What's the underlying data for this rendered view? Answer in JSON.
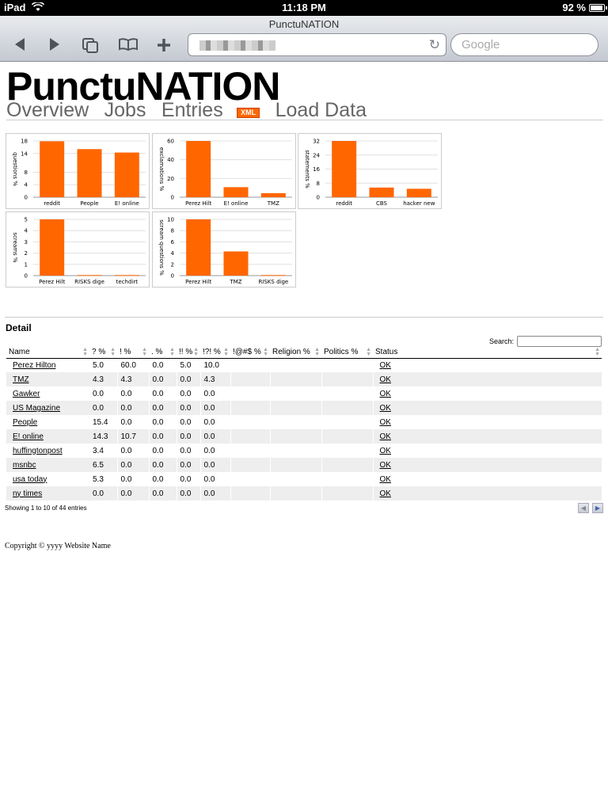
{
  "statusbar": {
    "carrier": "iPad",
    "time": "11:18 PM",
    "battery": "92 %",
    "battery_level": 0.92
  },
  "browser": {
    "page_title": "PunctuNATION",
    "search_placeholder": "Google"
  },
  "site": {
    "title": "PunctuNATION",
    "nav": [
      "Overview",
      "Jobs",
      "Entries"
    ],
    "xml_badge": "XML",
    "nav_load": "Load Data"
  },
  "colors": {
    "accent": "#ff6600",
    "grid": "#e0e0e0",
    "row_alt": "#eeeeee"
  },
  "chart_data": [
    {
      "type": "bar",
      "ylabel": "questions %",
      "categories": [
        "reddit",
        "People",
        "E! online"
      ],
      "values": [
        17.9,
        15.4,
        14.3
      ],
      "ylim": [
        0,
        18
      ],
      "yticks": [
        0,
        4,
        8,
        14,
        18
      ]
    },
    {
      "type": "bar",
      "ylabel": "exclamations %",
      "categories": [
        "Perez Hilt",
        "E! online",
        "TMZ"
      ],
      "values": [
        60.0,
        10.7,
        4.3
      ],
      "ylim": [
        0,
        60
      ],
      "yticks": [
        0,
        20,
        40,
        60
      ]
    },
    {
      "type": "bar",
      "ylabel": "statements %",
      "categories": [
        "reddit",
        "CBS",
        "hacker new"
      ],
      "values": [
        32.0,
        5.5,
        4.8
      ],
      "ylim": [
        0,
        32
      ],
      "yticks": [
        0,
        8,
        16,
        24,
        32
      ]
    },
    {
      "type": "bar",
      "ylabel": "screams %",
      "categories": [
        "Perez Hilt",
        "RISKS dige",
        "techdirt"
      ],
      "values": [
        5.0,
        0.05,
        0.05
      ],
      "ylim": [
        0,
        5
      ],
      "yticks": [
        0,
        1,
        2,
        3,
        4,
        5
      ]
    },
    {
      "type": "bar",
      "ylabel": "scream questions %",
      "categories": [
        "Perez Hilt",
        "TMZ",
        "RISKS dige"
      ],
      "values": [
        10.0,
        4.3,
        0.1
      ],
      "ylim": [
        0,
        10
      ],
      "yticks": [
        0,
        2,
        4,
        6,
        8,
        10
      ]
    }
  ],
  "detail": {
    "heading": "Detail",
    "search_label": "Search:",
    "columns": [
      "Name",
      "? %",
      "! %",
      ". %",
      "!! %",
      "!?! %",
      "!@#$ %",
      "Religion %",
      "Politics %",
      "Status"
    ],
    "rows": [
      [
        "Perez Hilton",
        "5.0",
        "60.0",
        "0.0",
        "5.0",
        "10.0",
        "",
        "",
        "",
        "OK"
      ],
      [
        "TMZ",
        "4.3",
        "4.3",
        "0.0",
        "0.0",
        "4.3",
        "",
        "",
        "",
        "OK"
      ],
      [
        "Gawker",
        "0.0",
        "0.0",
        "0.0",
        "0.0",
        "0.0",
        "",
        "",
        "",
        "OK"
      ],
      [
        "US Magazine",
        "0.0",
        "0.0",
        "0.0",
        "0.0",
        "0.0",
        "",
        "",
        "",
        "OK"
      ],
      [
        "People",
        "15.4",
        "0.0",
        "0.0",
        "0.0",
        "0.0",
        "",
        "",
        "",
        "OK"
      ],
      [
        "E! online",
        "14.3",
        "10.7",
        "0.0",
        "0.0",
        "0.0",
        "",
        "",
        "",
        "OK"
      ],
      [
        "huffingtonpost",
        "3.4",
        "0.0",
        "0.0",
        "0.0",
        "0.0",
        "",
        "",
        "",
        "OK"
      ],
      [
        "msnbc",
        "6.5",
        "0.0",
        "0.0",
        "0.0",
        "0.0",
        "",
        "",
        "",
        "OK"
      ],
      [
        "usa today",
        "5.3",
        "0.0",
        "0.0",
        "0.0",
        "0.0",
        "",
        "",
        "",
        "OK"
      ],
      [
        "ny times",
        "0.0",
        "0.0",
        "0.0",
        "0.0",
        "0.0",
        "",
        "",
        "",
        "OK"
      ]
    ],
    "info": "Showing 1 to 10 of 44 entries"
  },
  "footer": "Copyright © yyyy Website Name"
}
